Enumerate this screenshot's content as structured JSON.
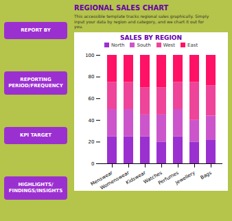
{
  "chart_data": {
    "type": "bar",
    "stacked": true,
    "title": "SALES BY REGION",
    "categories": [
      "Menswear",
      "Womenswear",
      "Kidswear",
      "Watches",
      "Perfumes",
      "Jewellery",
      "Bags"
    ],
    "series": [
      {
        "name": "North",
        "color": "#9b30d0",
        "values": [
          25,
          25,
          25,
          20,
          25,
          20,
          22
        ]
      },
      {
        "name": "South",
        "color": "#cc55cc",
        "values": [
          25,
          25,
          20,
          25,
          25,
          20,
          22
        ]
      },
      {
        "name": "West",
        "color": "#ee4499",
        "values": [
          25,
          25,
          25,
          25,
          25,
          35,
          28
        ]
      },
      {
        "name": "East",
        "color": "#ff1166",
        "values": [
          25,
          25,
          30,
          30,
          25,
          25,
          28
        ]
      }
    ],
    "ylim": [
      0,
      100
    ],
    "yticks": [
      0,
      20,
      40,
      60,
      80,
      100
    ],
    "grid": false,
    "legend": "top",
    "annotations": [
      "REGIONAL SALES CHART",
      "This accessible template tracks regional sales graphically. Simply\ninput your data by region and category, and we chart it out for\nyou.",
      "REPORT BY",
      "REPORTING\nPERIOD/FREQUENCY",
      "KPI TARGET",
      "HIGHLIGHTS/\nFINDINGS/INSIGHTS"
    ]
  }
}
